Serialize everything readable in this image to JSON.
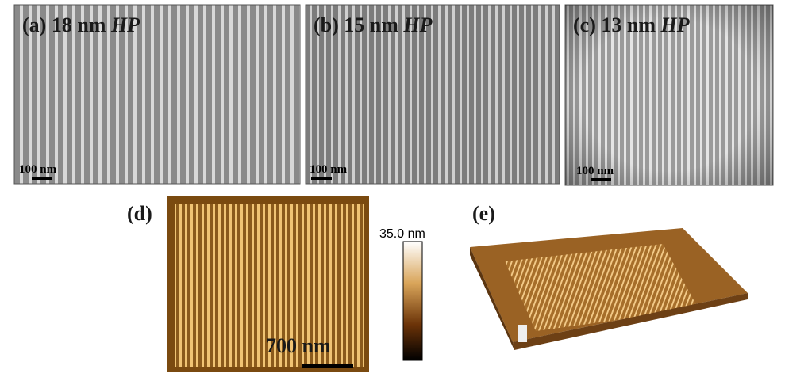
{
  "panels": [
    {
      "label": "(a) 18 nm",
      "emphasis": "HP",
      "scale": "100 nm"
    },
    {
      "label": "(b) 15 nm",
      "emphasis": "HP",
      "scale": "100 nm"
    },
    {
      "label": "(c) 13 nm",
      "emphasis": "HP",
      "scale": "100 nm"
    }
  ],
  "afm": {
    "label": "(d)",
    "colorbar_max": "35.0 nm",
    "scale": "700 nm"
  },
  "afm3d": {
    "label": "(e)"
  }
}
